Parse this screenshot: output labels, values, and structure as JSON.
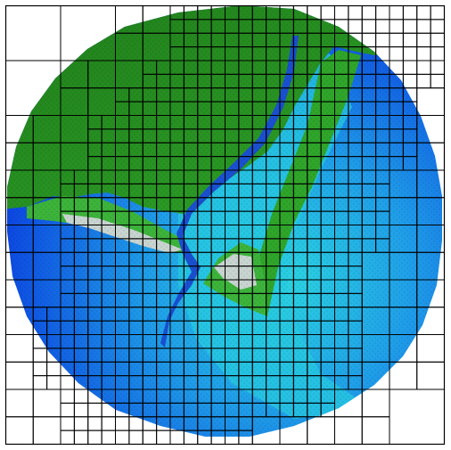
{
  "figure": {
    "description_visible_text": "",
    "colors": {
      "background": "#ffffff",
      "outer_frame": "#000000",
      "grid_lines": "#000000",
      "deep_water": "#0a3ee0",
      "mid_water": "#1f8fe6",
      "shallow_water": "#27c9e0",
      "channel": "#1a4fd0",
      "sand": "#c8d4d0",
      "land_light": "#2fa52a",
      "land_dark": "#1f7d1a"
    }
  }
}
